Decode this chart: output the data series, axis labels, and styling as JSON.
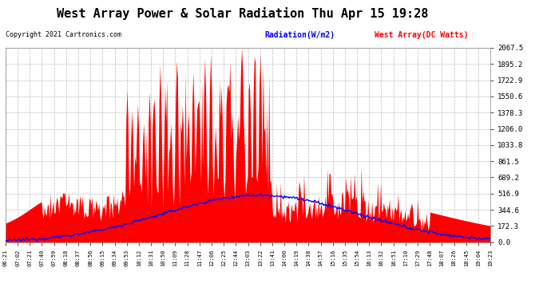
{
  "title": "West Array Power & Solar Radiation Thu Apr 15 19:28",
  "copyright": "Copyright 2021 Cartronics.com",
  "legend_radiation": "Radiation(W/m2)",
  "legend_west": "West Array(DC Watts)",
  "ymax": 2067.5,
  "ymin": 0.0,
  "yticks": [
    0.0,
    172.3,
    344.6,
    516.9,
    689.2,
    861.5,
    1033.8,
    1206.0,
    1378.3,
    1550.6,
    1722.9,
    1895.2,
    2067.5
  ],
  "background_color": "#ffffff",
  "plot_bg_color": "#ffffff",
  "title_color": "#000000",
  "grid_color": "#aaaaaa",
  "radiation_color": "#0000ff",
  "west_array_color": "#ff0000",
  "xtick_labels": [
    "06:21",
    "07:02",
    "07:21",
    "07:40",
    "07:59",
    "08:18",
    "08:37",
    "08:56",
    "09:15",
    "09:34",
    "09:53",
    "10:12",
    "10:31",
    "10:50",
    "11:09",
    "11:28",
    "11:47",
    "12:06",
    "12:25",
    "12:44",
    "13:03",
    "13:22",
    "13:41",
    "14:00",
    "14:19",
    "14:38",
    "14:57",
    "15:16",
    "15:35",
    "15:54",
    "16:13",
    "16:32",
    "16:51",
    "17:10",
    "17:29",
    "17:48",
    "18:07",
    "18:26",
    "18:45",
    "19:04",
    "19:23"
  ],
  "title_fontsize": 11,
  "copyright_fontsize": 6,
  "legend_fontsize": 7,
  "ytick_fontsize": 6.5,
  "xtick_fontsize": 5.0
}
